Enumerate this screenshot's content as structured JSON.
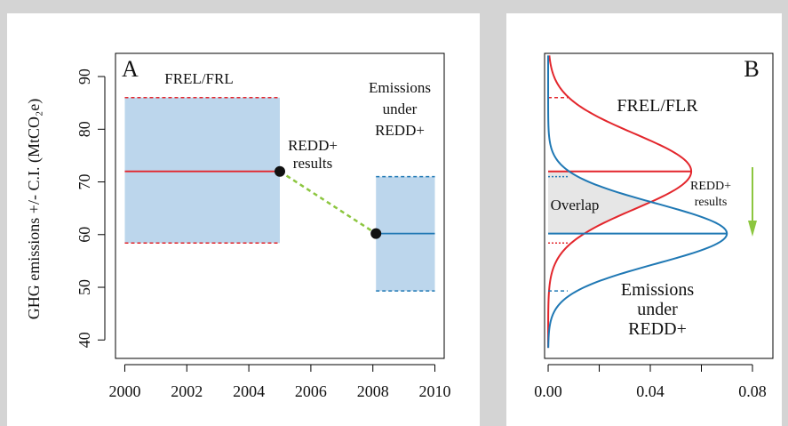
{
  "chart_data": [
    {
      "type": "interval",
      "panel_label": "A",
      "ylabel": "GHG emissions +/- C.I. (MtCO₂e)",
      "xlim": [
        1999.7,
        2010.3
      ],
      "ylim": [
        36.5,
        94.4
      ],
      "xticks": [
        2000,
        2002,
        2004,
        2006,
        2008,
        2010
      ],
      "yticks": [
        40,
        50,
        60,
        70,
        80,
        90
      ],
      "fill": "#bcd6ec",
      "connector_color": "#8cc63f",
      "series": [
        {
          "color": "#e3262c",
          "x": [
            2000,
            2005
          ],
          "mean": 72,
          "ci": [
            58.4,
            86
          ]
        },
        {
          "color": "#1f78b4",
          "x": [
            2008.1,
            2010
          ],
          "mean": 60.2,
          "ci": [
            49.3,
            71
          ]
        }
      ],
      "annotations": [
        {
          "lines": [
            "FREL/FRL"
          ]
        },
        {
          "lines": [
            "REDD+",
            "results"
          ]
        },
        {
          "lines": [
            "Emissions",
            "under",
            "REDD+"
          ]
        }
      ]
    },
    {
      "type": "density",
      "panel_label": "B",
      "xlim": [
        -0.0014,
        0.088
      ],
      "ylim": [
        36.5,
        94.4
      ],
      "xticks": [
        {
          "value": 0,
          "label": "0.00"
        },
        {
          "value": 0.04,
          "label": "0.04"
        },
        {
          "value": 0.08,
          "label": "0.08"
        }
      ],
      "xminor_ticks": [
        0.02,
        0.06
      ],
      "overlap_color": "#e6e6e6",
      "arrow_color": "#8cc63f",
      "series": [
        {
          "color": "#e3262c",
          "mean": 72,
          "sd": 7.12,
          "ci": [
            58.4,
            86
          ]
        },
        {
          "color": "#1f78b4",
          "mean": 60.2,
          "sd": 5.7,
          "ci": [
            49.3,
            71
          ]
        }
      ],
      "annotations": [
        {
          "lines": [
            "FREL/FLR"
          ]
        },
        {
          "lines": [
            "Overlap"
          ]
        },
        {
          "lines": [
            "REDD+",
            "results"
          ]
        },
        {
          "lines": [
            "Emissions",
            "under",
            "REDD+"
          ]
        }
      ]
    }
  ]
}
